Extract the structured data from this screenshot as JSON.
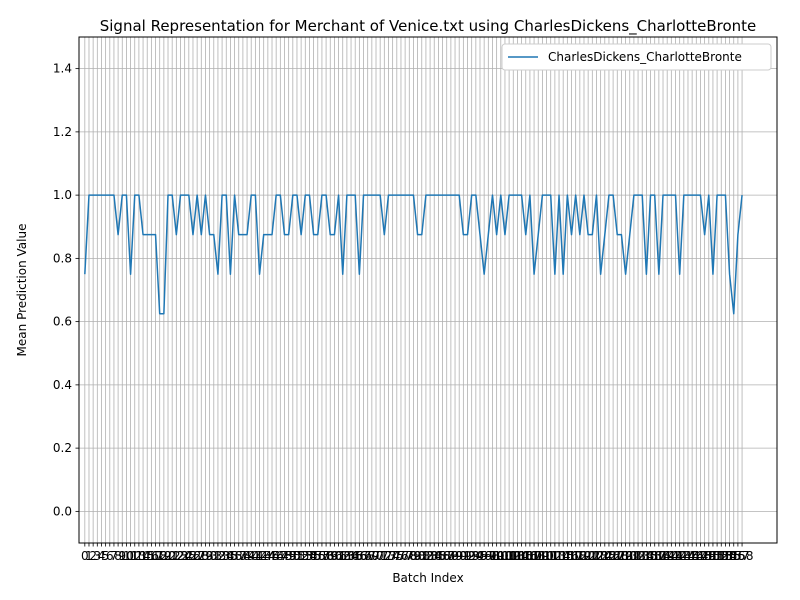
{
  "chart_data": {
    "type": "line",
    "title": "Signal Representation for Merchant of Venice.txt using CharlesDickens_CharlotteBronte",
    "xlabel": "Batch Index",
    "ylabel": "Mean Prediction Value",
    "ylim": [
      -0.1,
      1.5
    ],
    "xlim": [
      -1.4,
      166.4
    ],
    "y_ticks": [
      "0.0",
      "0.2",
      "0.4",
      "0.6",
      "0.8",
      "1.0",
      "1.2",
      "1.4"
    ],
    "grid": true,
    "legend_position": "top-right",
    "series": [
      {
        "name": "CharlesDickens_CharlotteBronte",
        "color": "#1f77b4",
        "x_start": 0,
        "values": [
          0.75,
          1,
          1,
          1,
          1,
          1,
          1,
          1,
          0.875,
          1,
          1,
          0.75,
          1,
          1,
          0.875,
          0.875,
          0.875,
          0.875,
          0.625,
          0.625,
          1,
          1,
          0.875,
          1,
          1,
          1,
          0.875,
          1,
          0.875,
          1,
          0.875,
          0.875,
          0.75,
          1,
          1,
          0.75,
          1,
          0.875,
          0.875,
          0.875,
          1,
          1,
          0.75,
          0.875,
          0.875,
          0.875,
          1,
          1,
          0.875,
          0.875,
          1,
          1,
          0.875,
          1,
          1,
          0.875,
          0.875,
          1,
          1,
          0.875,
          0.875,
          1,
          0.75,
          1,
          1,
          1,
          0.75,
          1,
          1,
          1,
          1,
          1,
          0.875,
          1,
          1,
          1,
          1,
          1,
          1,
          1,
          0.875,
          0.875,
          1,
          1,
          1,
          1,
          1,
          1,
          1,
          1,
          1,
          0.875,
          0.875,
          1,
          1,
          0.875,
          0.75,
          0.875,
          1,
          0.875,
          1,
          0.875,
          1,
          1,
          1,
          1,
          0.875,
          1,
          0.75,
          0.875,
          1,
          1,
          1,
          0.75,
          1,
          0.75,
          1,
          0.875,
          1,
          0.875,
          1,
          0.875,
          0.875,
          1,
          0.75,
          0.875,
          1,
          1,
          0.875,
          0.875,
          0.75,
          0.875,
          1,
          1,
          1,
          0.75,
          1,
          1,
          0.75,
          1,
          1,
          1,
          1,
          0.75,
          1,
          1,
          1,
          1,
          1,
          0.875,
          1,
          0.75,
          1,
          1,
          1,
          0.75,
          0.625,
          0.875,
          1
        ]
      }
    ]
  }
}
